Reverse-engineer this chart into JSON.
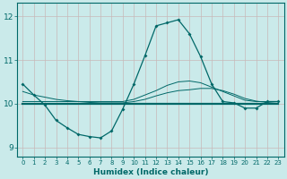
{
  "xlabel": "Humidex (Indice chaleur)",
  "xlim": [
    -0.5,
    23.5
  ],
  "ylim": [
    8.8,
    12.3
  ],
  "yticks": [
    9,
    10,
    11,
    12
  ],
  "xticks": [
    0,
    1,
    2,
    3,
    4,
    5,
    6,
    7,
    8,
    9,
    10,
    11,
    12,
    13,
    14,
    15,
    16,
    17,
    18,
    19,
    20,
    21,
    22,
    23
  ],
  "background_color": "#caeaea",
  "grid_color": "#c0c8c8",
  "line_color": "#006868",
  "line1_marker": {
    "x": [
      0,
      1,
      2,
      3,
      4,
      5,
      6,
      7,
      8,
      9,
      10,
      11,
      12,
      13,
      14,
      15,
      16,
      17,
      18,
      19,
      20,
      21,
      22,
      23
    ],
    "y": [
      10.45,
      10.2,
      9.97,
      9.62,
      9.45,
      9.3,
      9.25,
      9.22,
      9.38,
      9.88,
      10.45,
      11.1,
      11.78,
      11.85,
      11.92,
      11.6,
      11.08,
      10.45,
      10.05,
      10.02,
      9.9,
      9.9,
      10.05,
      10.05
    ]
  },
  "line2_flat": {
    "x": [
      0,
      1,
      2,
      3,
      4,
      5,
      6,
      7,
      8,
      9,
      10,
      11,
      12,
      13,
      14,
      15,
      16,
      17,
      18,
      19,
      20,
      21,
      22,
      23
    ],
    "y": [
      10.0,
      10.0,
      10.0,
      10.0,
      10.0,
      10.0,
      10.0,
      10.0,
      10.0,
      10.0,
      10.0,
      10.0,
      10.0,
      10.0,
      10.0,
      10.0,
      10.0,
      10.0,
      10.0,
      10.0,
      10.0,
      10.0,
      10.0,
      10.0
    ]
  },
  "line3_slow": {
    "x": [
      0,
      1,
      2,
      3,
      4,
      5,
      6,
      7,
      8,
      9,
      10,
      11,
      12,
      13,
      14,
      15,
      16,
      17,
      18,
      19,
      20,
      21,
      22,
      23
    ],
    "y": [
      10.28,
      10.2,
      10.15,
      10.1,
      10.07,
      10.05,
      10.03,
      10.02,
      10.02,
      10.02,
      10.05,
      10.1,
      10.18,
      10.25,
      10.3,
      10.32,
      10.35,
      10.35,
      10.3,
      10.22,
      10.12,
      10.06,
      10.03,
      10.05
    ]
  },
  "line4_medium": {
    "x": [
      0,
      1,
      2,
      3,
      4,
      5,
      6,
      7,
      8,
      9,
      10,
      11,
      12,
      13,
      14,
      15,
      16,
      17,
      18,
      19,
      20,
      21,
      22,
      23
    ],
    "y": [
      10.05,
      10.05,
      10.05,
      10.05,
      10.05,
      10.05,
      10.05,
      10.05,
      10.05,
      10.05,
      10.1,
      10.2,
      10.3,
      10.42,
      10.5,
      10.52,
      10.48,
      10.38,
      10.28,
      10.18,
      10.08,
      10.05,
      10.05,
      10.05
    ]
  }
}
